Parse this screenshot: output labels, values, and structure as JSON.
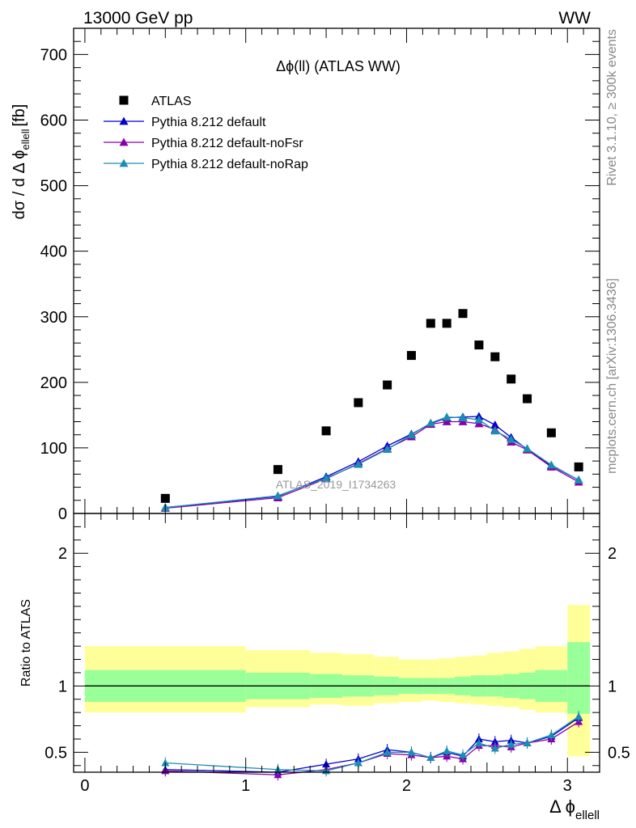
{
  "header": {
    "left": "13000 GeV pp",
    "right": "WW",
    "rivet": "Rivet 3.1.10, ≥ 300k events",
    "mcplots": "mcplots.cern.ch [arXiv:1306.3436]"
  },
  "chart_data": [
    {
      "type": "scatter",
      "title": "Δϕ(ll) (ATLAS WW)",
      "watermark": "ATLAS_2019_I1734263",
      "ylabel": "dσ / d Δ ϕ ellell [fb]",
      "ylabel_main": "dσ / d Δ ϕ",
      "ylabel_sub": "ellell",
      "ylabel_unit": "[fb]",
      "xlim": [
        -0.07,
        3.2
      ],
      "ylim": [
        0,
        740
      ],
      "y_ticks": [
        0,
        100,
        200,
        300,
        400,
        500,
        600,
        700
      ],
      "y_tick_labels": [
        "0",
        "100",
        "200",
        "300",
        "400",
        "500",
        "600",
        "700"
      ],
      "legend_position": "top-left",
      "legend": [
        "ATLAS",
        "Pythia 8.212 default",
        "Pythia 8.212 default-noFsr",
        "Pythia 8.212 default-noRap"
      ],
      "series": [
        {
          "name": "ATLAS",
          "color": "#000000",
          "marker": "square",
          "x": [
            0.5,
            1.2,
            1.5,
            1.7,
            1.88,
            2.03,
            2.15,
            2.25,
            2.35,
            2.45,
            2.55,
            2.65,
            2.75,
            2.9,
            3.07
          ],
          "y": [
            23,
            67,
            126,
            169,
            196,
            241,
            290,
            290,
            305,
            257,
            239,
            205,
            175,
            123,
            71
          ]
        },
        {
          "name": "Pythia 8.212 default",
          "color": "#0000cc",
          "marker": "triangle",
          "x": [
            0.5,
            1.2,
            1.5,
            1.7,
            1.88,
            2.03,
            2.15,
            2.25,
            2.35,
            2.45,
            2.55,
            2.65,
            2.75,
            2.9,
            3.07
          ],
          "y": [
            9,
            26,
            56,
            79,
            103,
            121,
            137,
            146,
            147,
            148,
            135,
            116,
            98,
            73,
            51
          ]
        },
        {
          "name": "Pythia 8.212 default-noFsr",
          "color": "#8800aa",
          "marker": "triangle",
          "x": [
            0.5,
            1.2,
            1.5,
            1.7,
            1.88,
            2.03,
            2.15,
            2.25,
            2.35,
            2.45,
            2.55,
            2.65,
            2.75,
            2.9,
            3.07
          ],
          "y": [
            8,
            24,
            53,
            76,
            99,
            117,
            136,
            140,
            140,
            137,
            128,
            109,
            97,
            71,
            48
          ]
        },
        {
          "name": "Pythia 8.212 default-noRap",
          "color": "#1a8eb0",
          "marker": "triangle",
          "x": [
            0.5,
            1.2,
            1.5,
            1.7,
            1.88,
            2.03,
            2.15,
            2.25,
            2.35,
            2.45,
            2.55,
            2.65,
            2.75,
            2.9,
            3.07
          ],
          "y": [
            9,
            27,
            54,
            75,
            98,
            120,
            138,
            147,
            146,
            143,
            126,
            113,
            99,
            74,
            51
          ]
        }
      ]
    },
    {
      "type": "line",
      "title": "",
      "xlabel": "Δ ϕ ellell",
      "xlabel_main": "Δ ϕ",
      "xlabel_sub": "ellell",
      "ylabel": "Ratio to ATLAS",
      "xlim": [
        -0.07,
        3.2
      ],
      "ylim": [
        0.35,
        2.3
      ],
      "x_ticks": [
        0,
        1,
        2,
        3
      ],
      "x_tick_labels": [
        "0",
        "1",
        "2",
        "3"
      ],
      "y_ticks": [
        0.5,
        1,
        2
      ],
      "y_tick_labels": [
        "0.5",
        "1",
        "2"
      ],
      "reference_line": 1,
      "bands": {
        "edges": [
          0,
          1,
          1.4,
          1.6,
          1.8,
          1.95,
          2.1,
          2.2,
          2.3,
          2.4,
          2.5,
          2.6,
          2.7,
          2.8,
          3.0,
          3.14
        ],
        "stat_low": [
          0.88,
          0.9,
          0.91,
          0.92,
          0.93,
          0.94,
          0.94,
          0.94,
          0.93,
          0.92,
          0.92,
          0.91,
          0.9,
          0.88,
          0.79
        ],
        "stat_high": [
          1.12,
          1.1,
          1.09,
          1.08,
          1.07,
          1.06,
          1.06,
          1.06,
          1.07,
          1.08,
          1.08,
          1.09,
          1.1,
          1.12,
          1.33
        ],
        "syst_low": [
          0.8,
          0.84,
          0.86,
          0.85,
          0.87,
          0.88,
          0.89,
          0.88,
          0.87,
          0.86,
          0.85,
          0.84,
          0.82,
          0.8,
          0.47
        ],
        "syst_high": [
          1.3,
          1.27,
          1.25,
          1.24,
          1.22,
          1.2,
          1.2,
          1.21,
          1.22,
          1.23,
          1.25,
          1.26,
          1.28,
          1.3,
          1.61
        ],
        "stat_color": "#99ff99",
        "syst_color": "#ffff99"
      },
      "series": [
        {
          "name": "Pythia 8.212 default",
          "color": "#0000cc",
          "x": [
            0.5,
            1.2,
            1.5,
            1.7,
            1.88,
            2.03,
            2.15,
            2.25,
            2.35,
            2.45,
            2.55,
            2.65,
            2.75,
            2.9,
            3.07
          ],
          "y": [
            0.37,
            0.35,
            0.41,
            0.45,
            0.52,
            0.5,
            0.46,
            0.5,
            0.47,
            0.6,
            0.58,
            0.59,
            0.57,
            0.62,
            0.76
          ]
        },
        {
          "name": "Pythia 8.212 default-noFsr",
          "color": "#8800aa",
          "x": [
            0.5,
            1.2,
            1.5,
            1.7,
            1.88,
            2.03,
            2.15,
            2.25,
            2.35,
            2.45,
            2.55,
            2.65,
            2.75,
            2.9,
            3.07
          ],
          "y": [
            0.36,
            0.33,
            0.37,
            0.42,
            0.49,
            0.48,
            0.46,
            0.47,
            0.45,
            0.55,
            0.55,
            0.54,
            0.57,
            0.6,
            0.73
          ]
        },
        {
          "name": "Pythia 8.212 default-noRap",
          "color": "#1a8eb0",
          "x": [
            0.5,
            1.2,
            1.5,
            1.7,
            1.88,
            2.03,
            2.15,
            2.25,
            2.35,
            2.45,
            2.55,
            2.65,
            2.75,
            2.9,
            3.07
          ],
          "y": [
            0.42,
            0.37,
            0.36,
            0.42,
            0.5,
            0.5,
            0.46,
            0.51,
            0.48,
            0.57,
            0.53,
            0.56,
            0.57,
            0.63,
            0.77
          ]
        }
      ]
    }
  ]
}
